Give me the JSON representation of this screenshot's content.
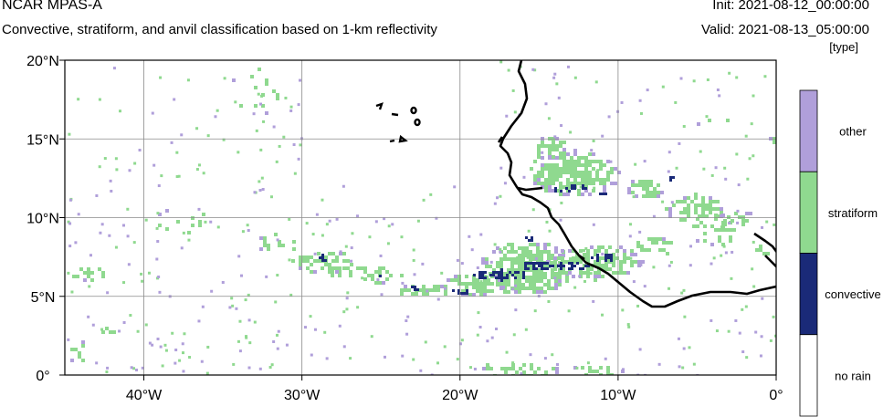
{
  "header": {
    "title": "NCAR MPAS-A",
    "subtitle": "Convective, stratiform, and anvil classification based on 1-km reflectivity",
    "init": "Init: 2021-08-12_00:00:00",
    "valid": "Valid: 2021-08-13_05:00:00",
    "units": "[type]"
  },
  "map": {
    "lon_range": [
      -45,
      0
    ],
    "lat_range": [
      0,
      20
    ],
    "x_ticks": [
      {
        "lon": -40,
        "label": "40°W"
      },
      {
        "lon": -30,
        "label": "30°W"
      },
      {
        "lon": -20,
        "label": "20°W"
      },
      {
        "lon": -10,
        "label": "10°W"
      },
      {
        "lon": 0,
        "label": "0°"
      }
    ],
    "y_ticks": [
      {
        "lat": 20,
        "label": "20°N"
      },
      {
        "lat": 15,
        "label": "15°N"
      },
      {
        "lat": 10,
        "label": "10°N"
      },
      {
        "lat": 5,
        "label": "5°N"
      },
      {
        "lat": 0,
        "label": "0°"
      }
    ],
    "grid": true,
    "coastline_color": "#000000"
  },
  "legend": {
    "placement": "right",
    "categories": [
      {
        "label": "other",
        "color": "#b09fda"
      },
      {
        "label": "stratiform",
        "color": "#8fd98f"
      },
      {
        "label": "convective",
        "color": "#1a2a78"
      },
      {
        "label": "no rain",
        "color": "#ffffff"
      }
    ]
  }
}
